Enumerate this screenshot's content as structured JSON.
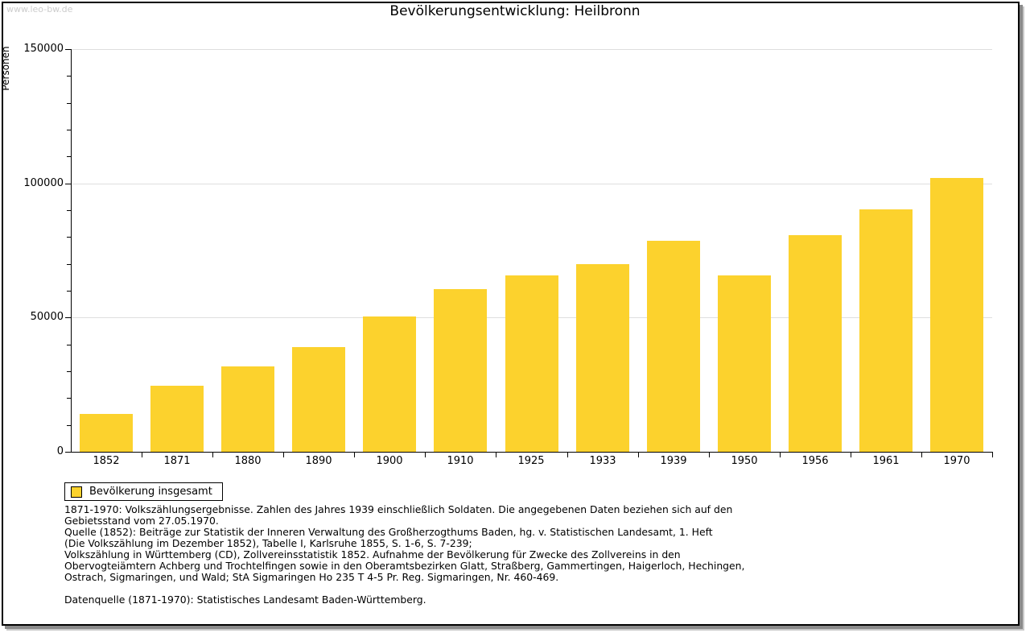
{
  "watermark": "www.leo-bw.de",
  "title": "Bevölkerungsentwicklung: Heilbronn",
  "ylabel": "Personen",
  "legend": {
    "label": "Bevölkerung insgesamt"
  },
  "colors": {
    "bar": "#fcd22d",
    "grid": "#dedede",
    "axis": "#000000",
    "watermark": "#cccccc",
    "panel_border": "#000000",
    "shadow": "#8a8a8a"
  },
  "chart_data": {
    "type": "bar",
    "title": "Bevölkerungsentwicklung: Heilbronn",
    "xlabel": "",
    "ylabel": "Personen",
    "categories": [
      "1852",
      "1871",
      "1880",
      "1890",
      "1900",
      "1910",
      "1925",
      "1933",
      "1939",
      "1950",
      "1956",
      "1961",
      "1970"
    ],
    "series": [
      {
        "name": "Bevölkerung insgesamt",
        "values": [
          14000,
          24700,
          31900,
          39100,
          50500,
          60700,
          65800,
          70000,
          78600,
          65600,
          80600,
          90300,
          102000
        ]
      }
    ],
    "ylim": [
      0,
      150000
    ],
    "yticks": [
      0,
      50000,
      100000,
      150000
    ],
    "ytick_labels": [
      "0",
      "50000",
      "100000",
      "150000"
    ],
    "minor_tick_interval": 10000,
    "grid": true,
    "legend_position": "bottom-left",
    "bar_color": "#fcd22d"
  },
  "footnotes": [
    "1871-1970: Volkszählungsergebnisse. Zahlen des Jahres 1939 einschließlich Soldaten. Die angegebenen Daten beziehen sich auf den",
    "Gebietsstand vom 27.05.1970.",
    "Quelle (1852): Beiträge zur Statistik der Inneren Verwaltung des Großherzogthums Baden, hg. v. Statistischen Landesamt, 1. Heft",
    "(Die Volkszählung im Dezember 1852), Tabelle I, Karlsruhe 1855, S. 1-6, S. 7-239;",
    "Volkszählung in Württemberg (CD), Zollvereinsstatistik 1852. Aufnahme der Bevölkerung für Zwecke des Zollvereins in den",
    "Obervogteiämtern Achberg und Trochtelfingen sowie in den Oberamtsbezirken Glatt, Straßberg, Gammertingen, Haigerloch, Hechingen,",
    "Ostrach, Sigmaringen, und Wald; StA Sigmaringen Ho 235 T 4-5 Pr. Reg. Sigmaringen, Nr. 460-469."
  ],
  "datasource": "Datenquelle (1871-1970): Statistisches Landesamt Baden-Württemberg."
}
